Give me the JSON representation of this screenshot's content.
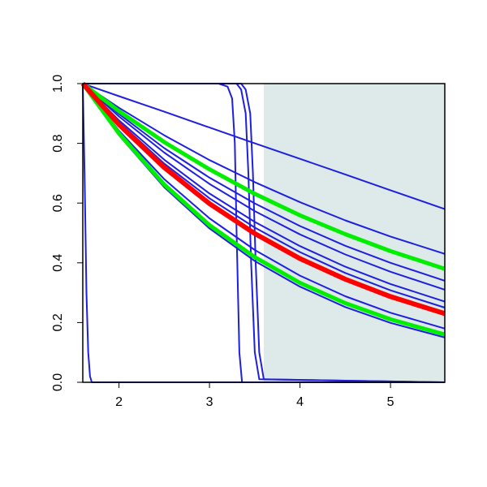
{
  "chart_data": {
    "type": "line",
    "xlim": [
      1.6,
      5.6
    ],
    "ylim": [
      0,
      1
    ],
    "xticks": [
      2,
      3,
      4,
      5
    ],
    "yticks": [
      {
        "value": 0,
        "label": "0.0"
      },
      0.2,
      0.4,
      0.6,
      0.8,
      {
        "value": 1,
        "label": "1.0"
      }
    ],
    "shade": {
      "x": [
        3.6,
        5.6
      ],
      "color": "#deeaea"
    },
    "series": [
      {
        "color": "#1f1fe0",
        "width": 2,
        "x": [
          1.6,
          2,
          2.5,
          3,
          3.5,
          4,
          4.5,
          5,
          5.6
        ],
        "values": [
          1,
          0.958,
          0.906,
          0.853,
          0.8,
          0.748,
          0.696,
          0.643,
          0.58
        ]
      },
      {
        "color": "#1f1fe0",
        "width": 2,
        "x": [
          1.6,
          2,
          2.5,
          3,
          3.5,
          4,
          4.5,
          5,
          5.6
        ],
        "values": [
          1,
          0.919,
          0.827,
          0.744,
          0.67,
          0.603,
          0.542,
          0.488,
          0.43
        ]
      },
      {
        "color": "#1f1fe0",
        "width": 2,
        "x": [
          1.6,
          2,
          2.5,
          3,
          3.5,
          4,
          4.5,
          5,
          5.6
        ],
        "values": [
          1,
          0.898,
          0.784,
          0.685,
          0.599,
          0.523,
          0.457,
          0.4,
          0.34
        ]
      },
      {
        "color": "#1f1fe0",
        "width": 2,
        "x": [
          1.6,
          2,
          2.5,
          3,
          3.5,
          4,
          4.5,
          5,
          5.6
        ],
        "values": [
          1,
          0.89,
          0.769,
          0.664,
          0.573,
          0.495,
          0.428,
          0.37,
          0.31
        ]
      },
      {
        "color": "#1f1fe0",
        "width": 2,
        "x": [
          1.6,
          2,
          2.5,
          3,
          3.5,
          4,
          4.5,
          5,
          5.6
        ],
        "values": [
          1,
          0.877,
          0.745,
          0.632,
          0.537,
          0.456,
          0.387,
          0.329,
          0.27
        ]
      },
      {
        "color": "#1f1fe0",
        "width": 2,
        "x": [
          1.6,
          2,
          2.5,
          3,
          3.5,
          4,
          4.5,
          5,
          5.6
        ],
        "values": [
          1,
          0.871,
          0.732,
          0.616,
          0.518,
          0.436,
          0.366,
          0.308,
          0.25
        ]
      },
      {
        "color": "#1f1fe0",
        "width": 2,
        "x": [
          1.6,
          2,
          2.5,
          3,
          3.5,
          4,
          4.5,
          5,
          5.6
        ],
        "values": [
          1,
          0.842,
          0.68,
          0.549,
          0.443,
          0.357,
          0.288,
          0.233,
          0.18
        ]
      },
      {
        "color": "#1f1fe0",
        "width": 2,
        "x": [
          1.6,
          2,
          2.5,
          3,
          3.5,
          4,
          4.5,
          5,
          5.6
        ],
        "values": [
          1,
          0.827,
          0.653,
          0.515,
          0.406,
          0.32,
          0.252,
          0.199,
          0.15
        ]
      },
      {
        "color": "#1f1fe0",
        "width": 2,
        "x": [
          1.6,
          1.62,
          1.64,
          1.66,
          1.68,
          1.7,
          5.6
        ],
        "values": [
          1,
          0.7,
          0.3,
          0.1,
          0.02,
          0,
          0
        ]
      },
      {
        "color": "#1f1fe0",
        "width": 2,
        "x": [
          1.6,
          3.1,
          3.2,
          3.25,
          3.28,
          3.3,
          3.33,
          3.36,
          5.6
        ],
        "values": [
          1,
          1,
          0.99,
          0.95,
          0.8,
          0.5,
          0.1,
          0,
          0
        ]
      },
      {
        "color": "#1f1fe0",
        "width": 2,
        "x": [
          1.6,
          3.3,
          3.35,
          3.4,
          3.43,
          3.46,
          3.5,
          3.55,
          5.6
        ],
        "values": [
          1,
          1,
          0.98,
          0.9,
          0.7,
          0.4,
          0.1,
          0.01,
          0
        ]
      },
      {
        "color": "#1f1fe0",
        "width": 2,
        "x": [
          1.6,
          3.35,
          3.4,
          3.45,
          3.48,
          3.51,
          3.55,
          3.6,
          5.6
        ],
        "values": [
          1,
          1,
          0.98,
          0.9,
          0.7,
          0.4,
          0.1,
          0.01,
          0
        ]
      },
      {
        "color": "#00ee00",
        "width": 5,
        "x": [
          1.6,
          2,
          2.5,
          3,
          3.5,
          4,
          4.5,
          5,
          5.6
        ],
        "values": [
          1,
          0.908,
          0.804,
          0.713,
          0.631,
          0.559,
          0.496,
          0.439,
          0.38
        ]
      },
      {
        "color": "#00ee00",
        "width": 5,
        "x": [
          1.6,
          2,
          2.5,
          3,
          3.5,
          4,
          4.5,
          5,
          5.6
        ],
        "values": [
          1,
          0.833,
          0.662,
          0.526,
          0.419,
          0.333,
          0.265,
          0.211,
          0.16
        ]
      },
      {
        "color": "#ff0000",
        "width": 6,
        "x": [
          1.6,
          2,
          2.5,
          3,
          3.5,
          4,
          4.5,
          5,
          5.6
        ],
        "values": [
          1,
          0.863,
          0.719,
          0.598,
          0.498,
          0.414,
          0.345,
          0.287,
          0.23
        ]
      }
    ]
  }
}
